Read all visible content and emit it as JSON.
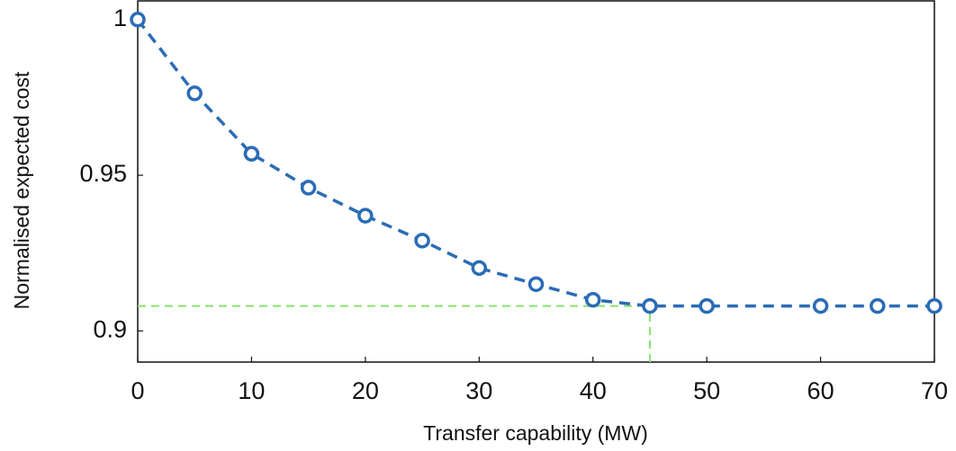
{
  "chart_data": {
    "type": "line",
    "xlabel": "Transfer capability (MW)",
    "ylabel": "Normalised expected cost",
    "x": [
      0,
      5,
      10,
      15,
      20,
      25,
      30,
      35,
      40,
      45,
      50,
      60,
      65,
      70
    ],
    "series": [
      {
        "color": "#2b6cb5",
        "values": [
          1,
          0.9763,
          0.9569,
          0.946,
          0.937,
          0.929,
          0.9202,
          0.915,
          0.91,
          0.908,
          0.908,
          0.908,
          0.908,
          0.908
        ]
      }
    ],
    "reference": {
      "x": 45,
      "y": 0.908,
      "color": "#86e36f"
    },
    "xlim": [
      0,
      70
    ],
    "ylim": [
      0.89,
      1.006
    ],
    "xticks": [
      0,
      10,
      20,
      30,
      40,
      50,
      60,
      70
    ],
    "yticks": [
      0.9,
      0.95,
      1
    ]
  }
}
